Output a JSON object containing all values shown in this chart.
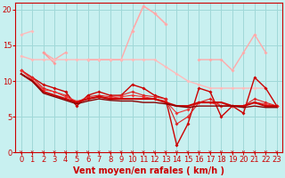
{
  "title": "",
  "xlabel": "Vent moyen/en rafales ( km/h )",
  "ylabel": "",
  "xlim": [
    -0.5,
    23.5
  ],
  "ylim": [
    0,
    21
  ],
  "yticks": [
    0,
    5,
    10,
    15,
    20
  ],
  "xticks": [
    0,
    1,
    2,
    3,
    4,
    5,
    6,
    7,
    8,
    9,
    10,
    11,
    12,
    13,
    14,
    15,
    16,
    17,
    18,
    19,
    20,
    21,
    22,
    23
  ],
  "bg_color": "#c8f0f0",
  "grid_color": "#a0d8d8",
  "series": [
    {
      "y": [
        16.5,
        17.0,
        null,
        null,
        null,
        null,
        null,
        null,
        null,
        null,
        17.0,
        20.5,
        19.5,
        18.0,
        null,
        null,
        null,
        null,
        null,
        null,
        null,
        16.5,
        null,
        null
      ],
      "color": "#ffbbbb",
      "marker": "D",
      "markersize": 2.0,
      "linewidth": 1.0
    },
    {
      "y": [
        null,
        null,
        14.0,
        13.0,
        14.0,
        null,
        13.0,
        13.0,
        13.0,
        13.0,
        17.0,
        20.5,
        19.5,
        18.0,
        null,
        null,
        13.0,
        13.0,
        13.0,
        11.5,
        14.0,
        16.5,
        14.0,
        null
      ],
      "color": "#ffaaaa",
      "marker": "D",
      "markersize": 2.0,
      "linewidth": 1.0
    },
    {
      "y": [
        null,
        null,
        14.0,
        12.5,
        null,
        null,
        13.0,
        13.0,
        13.0,
        13.0,
        null,
        null,
        null,
        null,
        null,
        null,
        null,
        null,
        null,
        null,
        null,
        null,
        null,
        null
      ],
      "color": "#ff9999",
      "marker": "D",
      "markersize": 2.0,
      "linewidth": 1.0
    },
    {
      "y": [
        13.5,
        13.0,
        13.0,
        13.0,
        13.0,
        13.0,
        13.0,
        13.0,
        13.0,
        13.0,
        13.0,
        13.0,
        13.0,
        12.0,
        11.0,
        10.0,
        9.5,
        9.0,
        9.0,
        9.0,
        9.0,
        9.0,
        9.0,
        null
      ],
      "color": "#ffbbbb",
      "marker": "D",
      "markersize": 2.0,
      "linewidth": 1.0
    },
    {
      "y": [
        11.5,
        10.5,
        9.5,
        9.0,
        8.5,
        6.5,
        8.0,
        8.5,
        8.0,
        8.0,
        9.5,
        9.0,
        8.0,
        7.5,
        1.0,
        4.0,
        9.0,
        8.5,
        5.0,
        6.5,
        5.5,
        10.5,
        9.0,
        6.5
      ],
      "color": "#cc0000",
      "marker": "D",
      "markersize": 2.0,
      "linewidth": 1.0
    },
    {
      "y": [
        11.5,
        10.5,
        9.0,
        8.5,
        8.0,
        7.0,
        7.8,
        8.0,
        7.8,
        8.0,
        8.5,
        8.0,
        7.8,
        7.5,
        4.0,
        5.0,
        7.0,
        7.5,
        6.5,
        6.5,
        6.5,
        7.5,
        7.0,
        6.5
      ],
      "color": "#dd2222",
      "marker": "D",
      "markersize": 2.0,
      "linewidth": 0.8
    },
    {
      "y": [
        11.5,
        10.2,
        8.8,
        8.5,
        7.8,
        7.2,
        7.5,
        7.8,
        7.6,
        7.8,
        8.0,
        7.8,
        7.5,
        7.2,
        5.5,
        6.0,
        7.0,
        7.0,
        6.5,
        6.5,
        6.5,
        7.0,
        6.8,
        6.5
      ],
      "color": "#ee3333",
      "marker": "D",
      "markersize": 2.0,
      "linewidth": 0.8
    },
    {
      "y": [
        11.0,
        10.0,
        8.5,
        8.0,
        7.5,
        7.0,
        7.5,
        7.8,
        7.5,
        7.5,
        7.5,
        7.5,
        7.5,
        7.0,
        6.5,
        6.5,
        7.0,
        7.0,
        7.0,
        6.5,
        6.5,
        7.0,
        6.5,
        6.5
      ],
      "color": "#cc0000",
      "marker": null,
      "linewidth": 1.5
    },
    {
      "y": [
        11.0,
        10.0,
        8.3,
        7.8,
        7.3,
        6.8,
        7.2,
        7.5,
        7.3,
        7.2,
        7.2,
        7.0,
        7.0,
        6.8,
        6.5,
        6.3,
        6.5,
        6.5,
        6.5,
        6.5,
        6.3,
        6.5,
        6.3,
        6.3
      ],
      "color": "#880000",
      "marker": null,
      "linewidth": 1.0
    }
  ],
  "xlabel_color": "#cc0000",
  "xlabel_fontsize": 7,
  "tick_color": "#cc0000",
  "tick_fontsize": 6
}
